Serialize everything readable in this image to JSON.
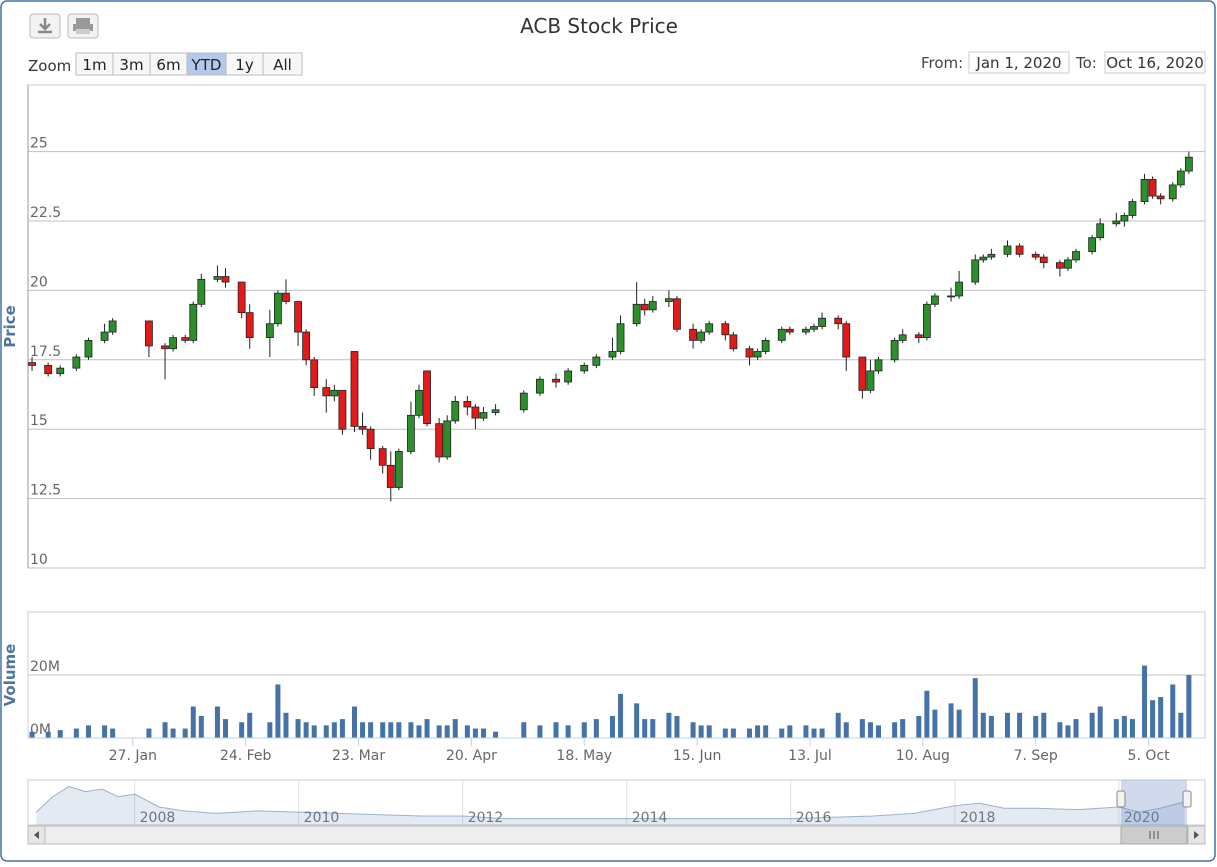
{
  "controls": {
    "zoom_label": "Zoom",
    "zoom_buttons": [
      "1m",
      "3m",
      "6m",
      "YTD",
      "1y",
      "All"
    ],
    "selected": "YTD",
    "from_label": "From:",
    "from": "Jan 1, 2020",
    "to_label": "To:",
    "to": "Oct 16, 2020"
  },
  "chart_data": [
    {
      "type": "candlestick",
      "title": "ACB Stock Price",
      "ylabel": "Price",
      "x": [
        2,
        6,
        9,
        13,
        16,
        20,
        22,
        31,
        35,
        37,
        40,
        42,
        44,
        48,
        50,
        54,
        56,
        61,
        63,
        65,
        68,
        70,
        72,
        75,
        77,
        79,
        82,
        84,
        86,
        89,
        91,
        93,
        96,
        98,
        100,
        103,
        105,
        107,
        110,
        112,
        114,
        117,
        124,
        128,
        132,
        135,
        139,
        142,
        146,
        148,
        152,
        154,
        156,
        160,
        162,
        166,
        168,
        170,
        174,
        176,
        180,
        182,
        184,
        188,
        190,
        194,
        196,
        198,
        202,
        204,
        208,
        210,
        212,
        216,
        218,
        222,
        224,
        226,
        230,
        232,
        236,
        238,
        240,
        244,
        247,
        251,
        253,
        257,
        259,
        261,
        265,
        267,
        271,
        273,
        275,
        278,
        280,
        282,
        285,
        287,
        289
      ],
      "open": [
        17.4,
        17.3,
        17.0,
        17.2,
        17.6,
        18.2,
        18.5,
        18.9,
        18.0,
        17.9,
        18.3,
        18.2,
        19.5,
        20.4,
        20.5,
        20.3,
        19.2,
        18.3,
        18.8,
        19.9,
        19.6,
        18.5,
        17.5,
        16.5,
        16.2,
        16.4,
        17.8,
        15.1,
        15.0,
        14.3,
        13.7,
        12.9,
        14.2,
        15.5,
        17.1,
        15.2,
        14.0,
        15.3,
        16.0,
        15.8,
        15.4,
        15.6,
        15.7,
        16.3,
        16.8,
        16.7,
        17.1,
        17.3,
        17.6,
        17.8,
        18.8,
        19.5,
        19.3,
        19.6,
        19.7,
        18.6,
        18.2,
        18.5,
        18.8,
        18.4,
        17.9,
        17.6,
        17.8,
        18.2,
        18.6,
        18.5,
        18.6,
        18.7,
        19.0,
        18.8,
        17.6,
        16.4,
        17.1,
        17.5,
        18.2,
        18.4,
        18.3,
        19.5,
        19.8,
        19.8,
        20.3,
        21.1,
        21.2,
        21.3,
        21.6,
        21.3,
        21.2,
        21.0,
        20.8,
        21.1,
        21.4,
        21.9,
        22.4,
        22.5,
        22.7,
        23.2,
        24.0,
        23.4,
        23.3,
        23.8,
        24.3
      ],
      "high": [
        17.6,
        17.4,
        17.3,
        17.7,
        18.3,
        18.8,
        19.0,
        18.9,
        18.1,
        18.4,
        18.4,
        19.6,
        20.6,
        20.9,
        20.8,
        20.3,
        19.5,
        19.3,
        20.0,
        20.4,
        19.6,
        18.6,
        17.6,
        16.8,
        16.6,
        16.4,
        17.8,
        15.6,
        15.1,
        14.4,
        14.2,
        14.3,
        16.0,
        16.6,
        17.1,
        15.4,
        15.5,
        16.2,
        16.2,
        15.9,
        15.8,
        15.9,
        16.4,
        16.9,
        17.0,
        17.2,
        17.4,
        17.7,
        18.3,
        19.1,
        20.3,
        19.7,
        19.8,
        20.0,
        19.8,
        18.8,
        18.6,
        18.9,
        18.9,
        18.5,
        18.0,
        17.9,
        18.3,
        18.7,
        18.7,
        18.7,
        18.8,
        19.2,
        19.1,
        18.9,
        17.6,
        17.5,
        17.6,
        18.3,
        18.6,
        18.5,
        19.6,
        19.9,
        20.1,
        20.7,
        21.3,
        21.3,
        21.5,
        21.8,
        21.7,
        21.4,
        21.3,
        21.1,
        21.2,
        21.5,
        22.0,
        22.6,
        22.8,
        22.8,
        23.3,
        24.2,
        24.1,
        23.5,
        23.9,
        24.4,
        25.0
      ],
      "low": [
        17.1,
        16.9,
        16.9,
        17.1,
        17.5,
        18.1,
        18.4,
        17.6,
        16.8,
        17.8,
        18.1,
        18.1,
        19.4,
        20.3,
        20.1,
        19.0,
        17.9,
        17.6,
        18.7,
        19.5,
        18.0,
        17.3,
        16.2,
        15.6,
        16.0,
        14.8,
        14.9,
        14.8,
        13.9,
        13.4,
        12.4,
        12.8,
        14.1,
        15.4,
        15.1,
        13.8,
        13.9,
        15.2,
        15.5,
        15.0,
        15.3,
        15.5,
        15.6,
        16.2,
        16.5,
        16.6,
        17.0,
        17.2,
        17.5,
        17.7,
        18.7,
        19.1,
        19.2,
        19.4,
        18.5,
        17.9,
        18.1,
        18.4,
        18.2,
        17.8,
        17.3,
        17.5,
        17.7,
        18.1,
        18.4,
        18.4,
        18.5,
        18.6,
        18.6,
        17.1,
        16.1,
        16.3,
        17.0,
        17.4,
        18.1,
        18.1,
        18.2,
        19.4,
        19.6,
        19.7,
        20.2,
        21.0,
        21.1,
        21.2,
        21.2,
        21.1,
        20.8,
        20.5,
        20.7,
        21.0,
        21.3,
        21.8,
        22.3,
        22.3,
        22.6,
        23.1,
        23.3,
        23.1,
        23.2,
        23.7,
        24.2
      ],
      "close": [
        17.3,
        17.0,
        17.2,
        17.6,
        18.2,
        18.5,
        18.9,
        18.0,
        17.9,
        18.3,
        18.2,
        19.5,
        20.4,
        20.5,
        20.3,
        19.2,
        18.3,
        18.8,
        19.9,
        19.6,
        18.5,
        17.5,
        16.5,
        16.2,
        16.4,
        15.0,
        15.1,
        15.0,
        14.3,
        13.7,
        12.9,
        14.2,
        15.5,
        16.4,
        15.2,
        14.0,
        15.3,
        16.0,
        15.8,
        15.4,
        15.6,
        15.7,
        16.3,
        16.8,
        16.7,
        17.1,
        17.3,
        17.6,
        17.8,
        18.8,
        19.5,
        19.3,
        19.6,
        19.7,
        18.6,
        18.2,
        18.5,
        18.8,
        18.4,
        17.9,
        17.6,
        17.8,
        18.2,
        18.6,
        18.5,
        18.6,
        18.7,
        19.0,
        18.8,
        17.6,
        16.4,
        17.1,
        17.5,
        18.2,
        18.4,
        18.3,
        19.5,
        19.8,
        19.8,
        20.3,
        21.1,
        21.2,
        21.3,
        21.6,
        21.3,
        21.2,
        21.0,
        20.8,
        21.1,
        21.4,
        21.9,
        22.4,
        22.5,
        22.7,
        23.2,
        24.0,
        23.4,
        23.3,
        23.8,
        24.3,
        24.8
      ],
      "up_color": "#2b8f2b",
      "down_color": "#e31a1a",
      "xlim": [
        1,
        293
      ],
      "ylim": [
        10,
        27.4
      ],
      "yticks": [
        10,
        12.5,
        15,
        17.5,
        20,
        22.5,
        25
      ],
      "grid": true
    },
    {
      "type": "bar",
      "ylabel": "Volume",
      "x": [
        2,
        6,
        9,
        13,
        16,
        20,
        22,
        31,
        35,
        37,
        40,
        42,
        44,
        48,
        50,
        54,
        56,
        61,
        63,
        65,
        68,
        70,
        72,
        75,
        77,
        79,
        82,
        84,
        86,
        89,
        91,
        93,
        96,
        98,
        100,
        103,
        105,
        107,
        110,
        112,
        114,
        117,
        124,
        128,
        132,
        135,
        139,
        142,
        146,
        148,
        152,
        154,
        156,
        160,
        162,
        166,
        168,
        170,
        174,
        176,
        180,
        182,
        184,
        188,
        190,
        194,
        196,
        198,
        202,
        204,
        208,
        210,
        212,
        216,
        218,
        222,
        224,
        226,
        230,
        232,
        236,
        238,
        240,
        244,
        247,
        251,
        253,
        257,
        259,
        261,
        265,
        267,
        271,
        273,
        275,
        278,
        280,
        282,
        285,
        287,
        289
      ],
      "values": [
        2000000,
        2000000,
        2500000,
        3000000,
        4000000,
        4000000,
        3000000,
        3000000,
        5000000,
        3000000,
        3000000,
        10000000,
        7000000,
        10000000,
        6000000,
        5000000,
        8000000,
        5000000,
        17000000,
        8000000,
        6000000,
        5000000,
        4000000,
        4000000,
        5000000,
        6000000,
        10000000,
        5000000,
        5000000,
        5000000,
        5000000,
        5000000,
        5000000,
        4000000,
        6000000,
        4000000,
        4000000,
        6000000,
        4000000,
        3000000,
        3000000,
        2000000,
        5000000,
        4000000,
        5000000,
        4000000,
        5000000,
        6000000,
        7000000,
        14000000,
        11000000,
        6000000,
        6000000,
        8000000,
        7000000,
        5000000,
        4000000,
        4000000,
        3000000,
        3000000,
        3000000,
        4000000,
        4000000,
        3000000,
        4000000,
        4000000,
        3000000,
        3000000,
        8000000,
        5000000,
        6000000,
        5000000,
        4000000,
        5000000,
        6000000,
        7000000,
        15000000,
        9000000,
        11000000,
        9000000,
        19000000,
        8000000,
        7000000,
        8000000,
        8000000,
        7000000,
        8000000,
        5000000,
        4000000,
        6000000,
        8000000,
        10000000,
        6000000,
        7000000,
        6000000,
        23000000,
        12000000,
        13000000,
        17000000,
        8000000,
        20000000
      ],
      "color": "#4572a7",
      "xlim": [
        1,
        293
      ],
      "ylim": [
        0,
        40000000
      ],
      "yticks": [
        {
          "value": 0,
          "label": "0M"
        },
        {
          "value": 20000000,
          "label": "20M"
        }
      ],
      "xticks": [
        {
          "value": 27,
          "label": "27. Jan"
        },
        {
          "value": 55,
          "label": "24. Feb"
        },
        {
          "value": 83,
          "label": "23. Mar"
        },
        {
          "value": 111,
          "label": "20. Apr"
        },
        {
          "value": 139,
          "label": "18. May"
        },
        {
          "value": 167,
          "label": "15. Jun"
        },
        {
          "value": 195,
          "label": "13. Jul"
        },
        {
          "value": 223,
          "label": "10. Aug"
        },
        {
          "value": 251,
          "label": "7. Sep"
        },
        {
          "value": 279,
          "label": "5. Oct"
        }
      ],
      "grid": true
    },
    {
      "type": "area",
      "x": [
        2006.8,
        2007.0,
        2007.2,
        2007.4,
        2007.6,
        2007.8,
        2008.0,
        2008.3,
        2008.6,
        2009.0,
        2009.5,
        2010.0,
        2010.5,
        2011.0,
        2011.5,
        2012.0,
        2012.5,
        2013.0,
        2013.5,
        2014.0,
        2014.5,
        2015.0,
        2015.5,
        2016.0,
        2016.5,
        2017.0,
        2017.5,
        2018.0,
        2018.3,
        2018.6,
        2019.0,
        2019.5,
        2020.0,
        2020.25,
        2020.5,
        2020.8
      ],
      "values": [
        10,
        22,
        30,
        26,
        28,
        22,
        24,
        14,
        11,
        9,
        11,
        10,
        9,
        8,
        7,
        7,
        5,
        5,
        5,
        5,
        5,
        5,
        5,
        5,
        6,
        7,
        9,
        15,
        17,
        13,
        13,
        12,
        14,
        10,
        13,
        18
      ],
      "color": "#4572a7",
      "xlim": [
        2006.7,
        2021.05
      ],
      "ylim": [
        0,
        35
      ],
      "xticks": [
        2008,
        2010,
        2012,
        2014,
        2016,
        2018,
        2020
      ]
    }
  ]
}
